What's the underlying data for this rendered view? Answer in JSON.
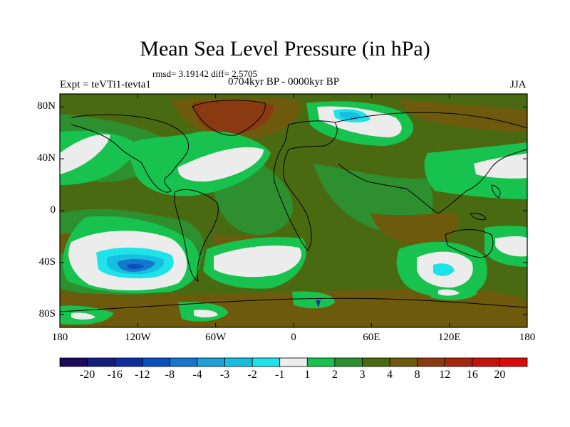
{
  "title": "Mean Sea Level Pressure (in hPa)",
  "stats": "rmsd= 3.19142 diff= 2.5705",
  "period": "0704kyr BP - 0000kyr BP",
  "experiment": "Expt = teVTi1-tevta1",
  "season": "JJA",
  "map": {
    "projection": "cylindrical-equidistant",
    "lon_range": [
      -180,
      180
    ],
    "lat_range": [
      -90,
      90
    ],
    "lat_labels": [
      {
        "text": "80N",
        "lat": 80
      },
      {
        "text": "40N",
        "lat": 40
      },
      {
        "text": "0",
        "lat": 0
      },
      {
        "text": "40S",
        "lat": -40
      },
      {
        "text": "80S",
        "lat": -80
      }
    ],
    "lon_labels": [
      {
        "text": "180",
        "lon": -180
      },
      {
        "text": "120W",
        "lon": -120
      },
      {
        "text": "60W",
        "lon": -60
      },
      {
        "text": "0",
        "lon": 0
      },
      {
        "text": "60E",
        "lon": 60
      },
      {
        "text": "120E",
        "lon": 120
      },
      {
        "text": "180",
        "lon": 180
      }
    ],
    "background_level_color": "#4a6a12"
  },
  "colorbar": {
    "colors": [
      "#1c0a5a",
      "#141f7e",
      "#0d2ea0",
      "#0c4fbe",
      "#1576cc",
      "#1ea0d8",
      "#16bfe0",
      "#1ee3e8",
      "#ececec",
      "#18c24e",
      "#2d8f2e",
      "#4a6a12",
      "#6e5a0c",
      "#8a3a10",
      "#a8260e",
      "#c2140c",
      "#dc0a0a"
    ],
    "labels": [
      "-20",
      "-16",
      "-12",
      "-8",
      "-4",
      "-3",
      "-2",
      "-1",
      "1",
      "2",
      "3",
      "4",
      "8",
      "12",
      "16",
      "20"
    ]
  }
}
